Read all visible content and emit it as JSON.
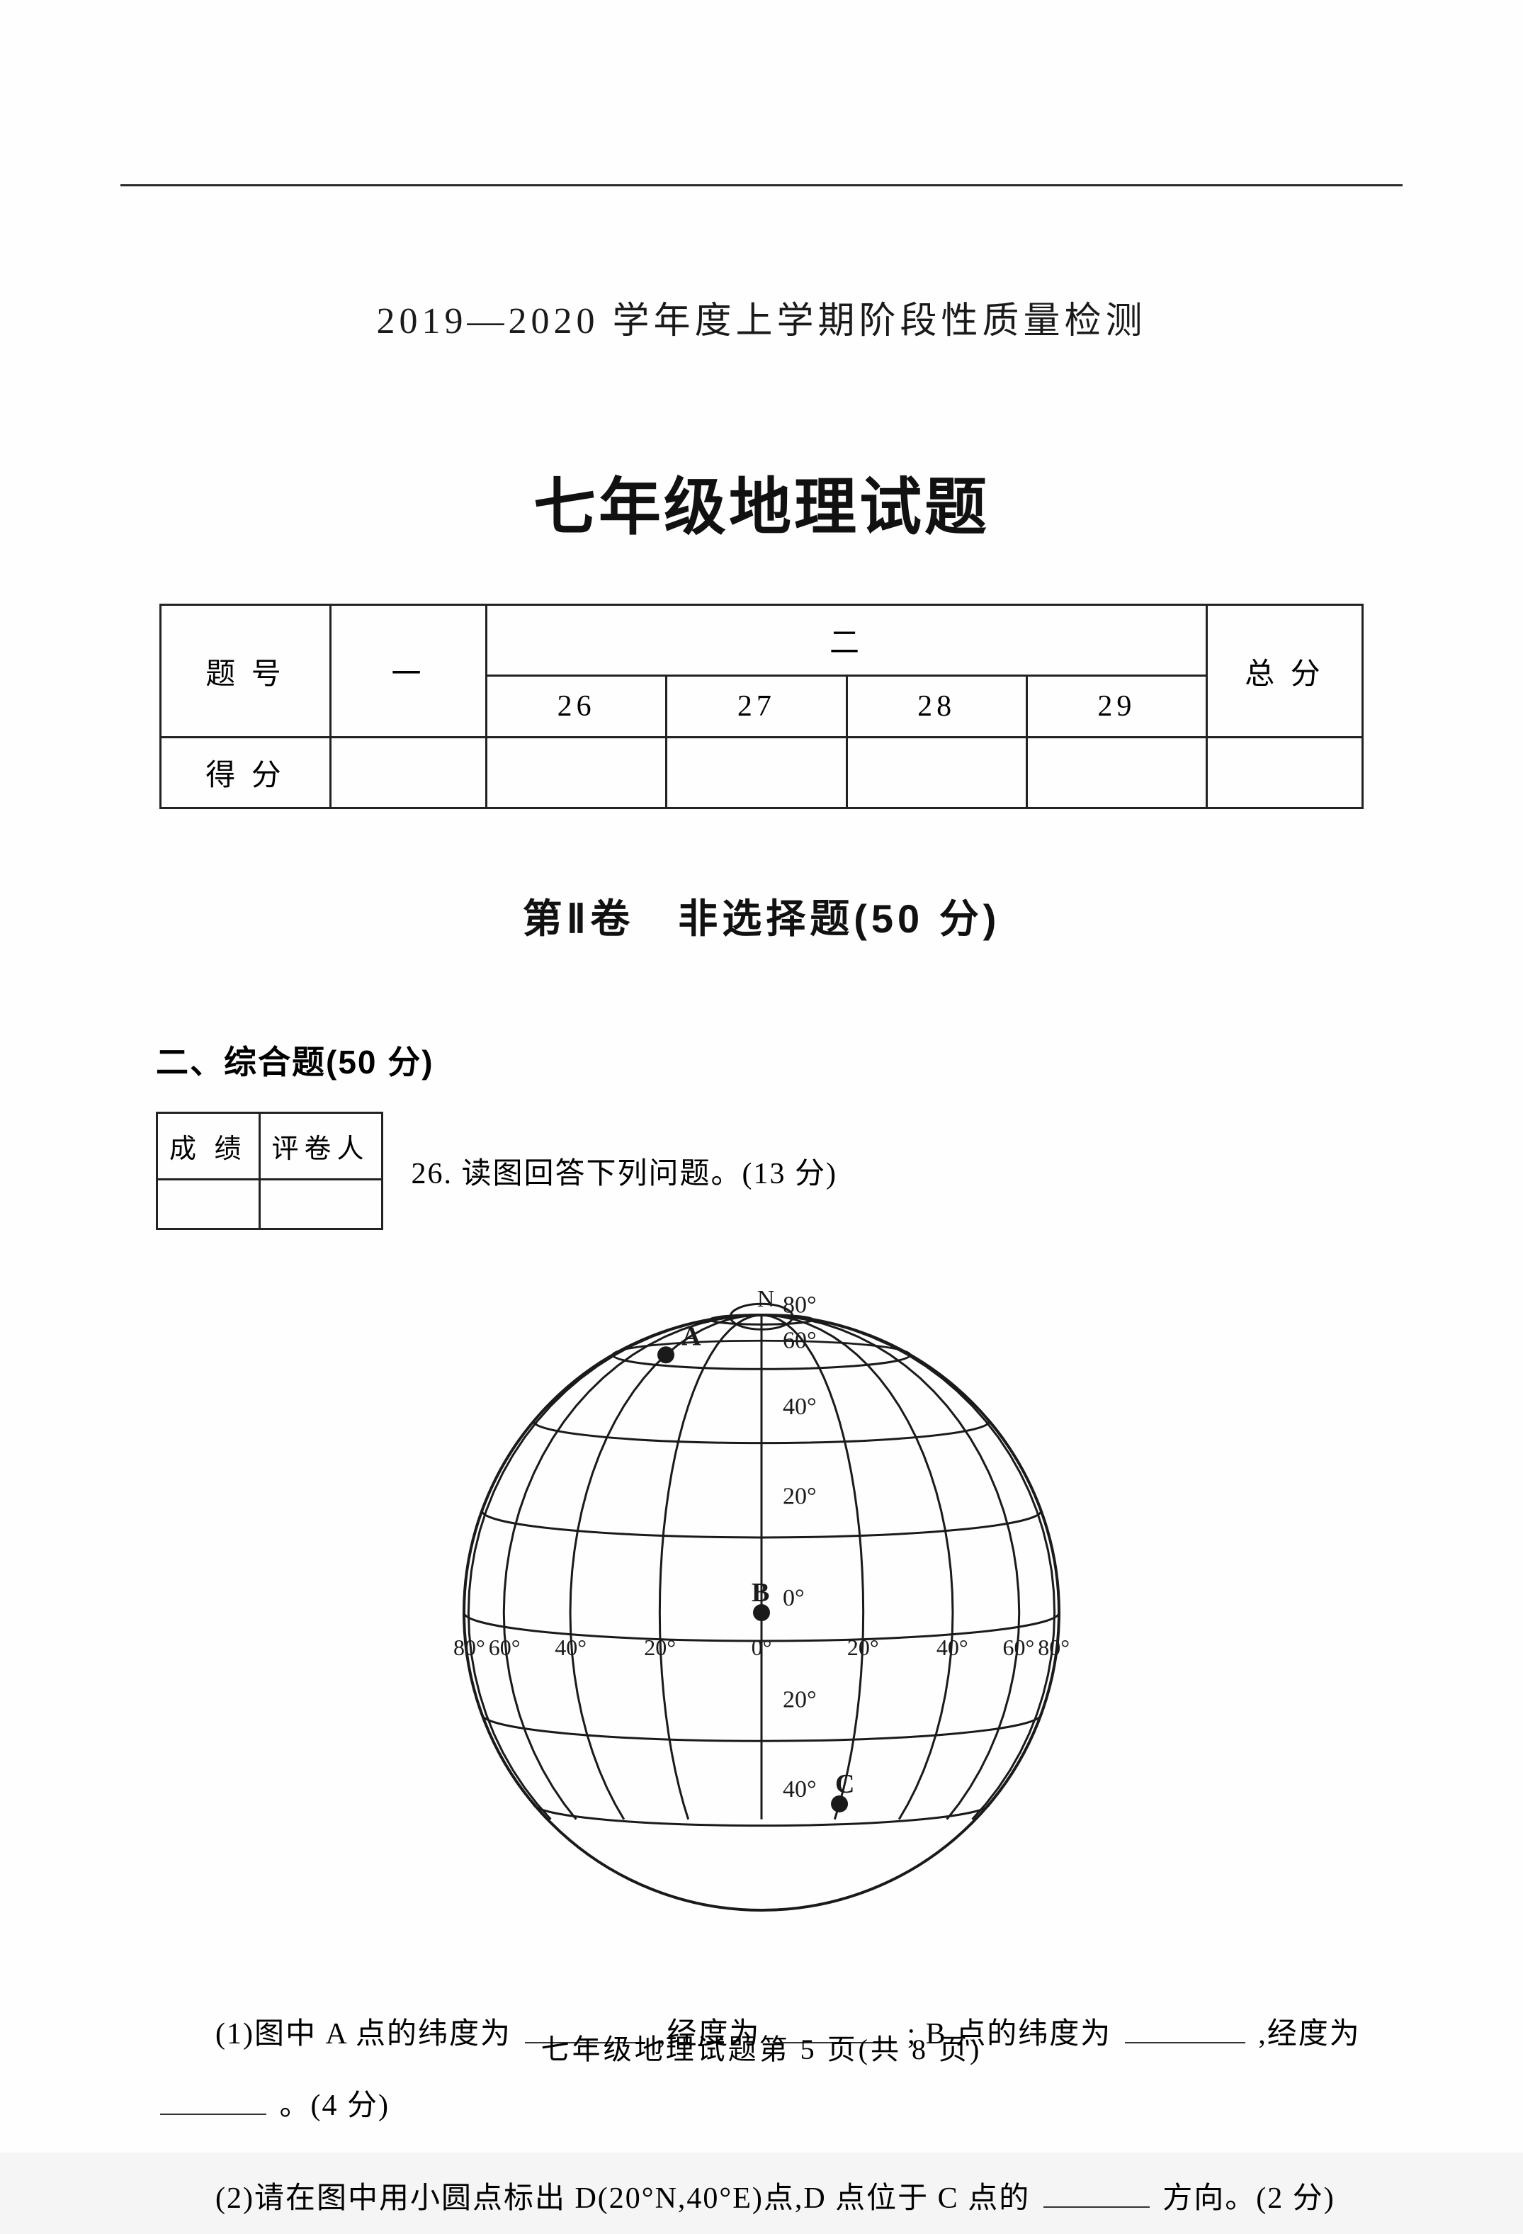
{
  "header": {
    "line": "2019—2020 学年度上学期阶段性质量检测",
    "title": "七年级地理试题"
  },
  "score_table": {
    "row1": {
      "c1": "题 号",
      "c2": "一",
      "c3": "二",
      "c4": "总 分"
    },
    "row2": {
      "c1": "26",
      "c2": "27",
      "c3": "28",
      "c4": "29"
    },
    "row3": {
      "c1": "得 分"
    }
  },
  "section": {
    "title": "第Ⅱ卷　非选择题(50 分)",
    "sub": "二、综合题(50 分)"
  },
  "grade_box": {
    "c1": "成 绩",
    "c2": "评卷人"
  },
  "q26": {
    "stem": "26. 读图回答下列问题。(13 分)",
    "part1a": "(1)图中 A 点的纬度为",
    "part1b": ",经度为",
    "part1c": "; B 点的纬度为",
    "part1d": ",经度为",
    "part1e": "。(4 分)",
    "part2a": "(2)请在图中用小圆点标出 D(20°N,40°E)点,D 点位于 C 点的",
    "part2b": "方向。(2 分)"
  },
  "globe": {
    "type": "diagram",
    "size": 900,
    "stroke": "#1a1a1a",
    "stroke_width": 3,
    "label_fontsize": 34,
    "north_label": "N",
    "latitudes": [
      80,
      60,
      40,
      20,
      0,
      -20,
      -40
    ],
    "lat_labels": [
      "80°",
      "60°",
      "40°",
      "20°",
      "0°",
      "20°",
      "40°"
    ],
    "longitudes_east": [
      0,
      20,
      40,
      60,
      80
    ],
    "longitudes_west": [
      20,
      40,
      60,
      80
    ],
    "lon_labels_left": [
      "80°",
      "60°",
      "40°",
      "20°"
    ],
    "lon_center": "0°",
    "lon_labels_right": [
      "20°",
      "40°",
      "60°",
      "80°"
    ],
    "points": {
      "A": {
        "label": "A",
        "lat": 60,
        "lon": -40
      },
      "B": {
        "label": "B",
        "lat": 0,
        "lon": 0
      },
      "C": {
        "label": "C",
        "lat": -40,
        "lon": 20
      }
    }
  },
  "footer": "七年级地理试题第 5 页(共 8 页)",
  "side_marks": [
    "",
    "",
    ""
  ]
}
